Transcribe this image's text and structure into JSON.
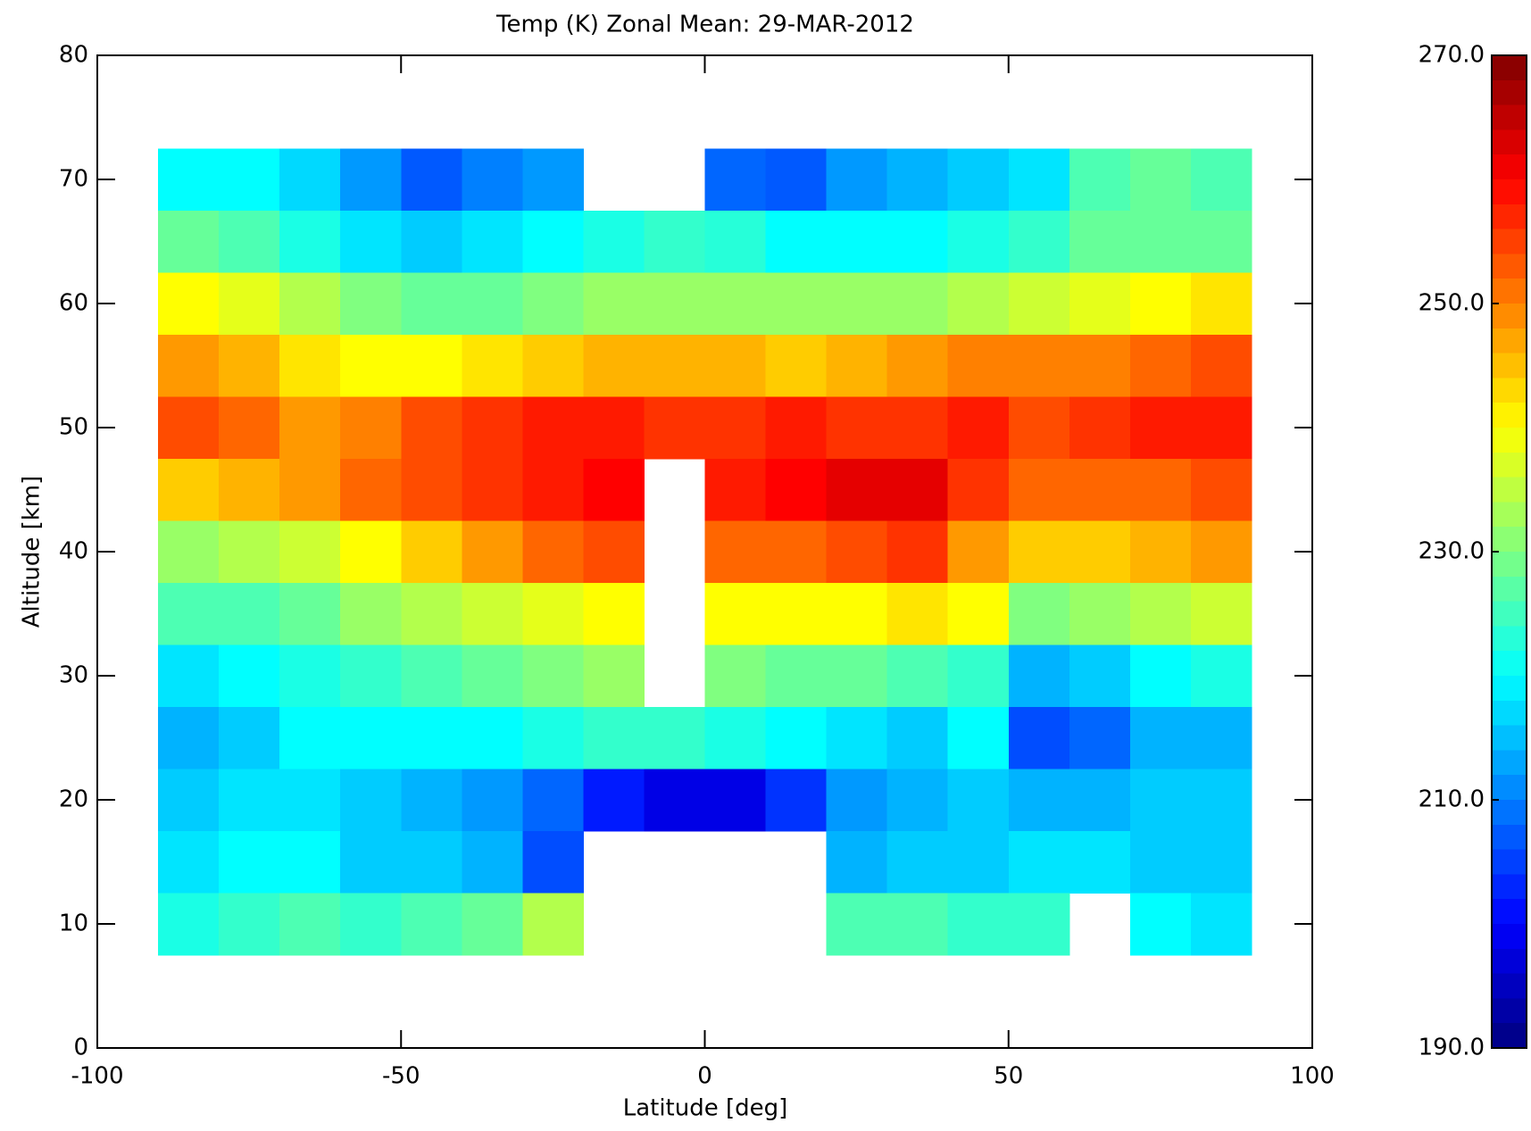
{
  "chart_data": {
    "type": "heatmap",
    "title": "Temp (K) Zonal Mean: 29-MAR-2012",
    "x_label": "Latitude [deg]",
    "y_label": "Altitude [km]",
    "colormap": "jet",
    "x": [
      -85,
      -75,
      -65,
      -55,
      -45,
      -35,
      -25,
      -15,
      -5,
      5,
      15,
      25,
      35,
      45,
      55,
      65,
      75,
      85
    ],
    "y": [
      70,
      65,
      60,
      55,
      50,
      45,
      40,
      35,
      30,
      25,
      20,
      15,
      10
    ],
    "z": [
      [
        220,
        220,
        217,
        212,
        207,
        210,
        212,
        null,
        null,
        208,
        207,
        212,
        214,
        216,
        218,
        226,
        228,
        226
      ],
      [
        228,
        226,
        222,
        218,
        216,
        218,
        220,
        222,
        224,
        223,
        220,
        220,
        220,
        222,
        224,
        228,
        228,
        228
      ],
      [
        240,
        238,
        234,
        230,
        228,
        228,
        230,
        232,
        232,
        232,
        232,
        232,
        232,
        234,
        236,
        238,
        240,
        242
      ],
      [
        248,
        246,
        242,
        240,
        240,
        242,
        244,
        246,
        246,
        246,
        244,
        246,
        248,
        250,
        250,
        250,
        252,
        254
      ],
      [
        254,
        252,
        248,
        250,
        254,
        256,
        258,
        258,
        256,
        256,
        258,
        256,
        256,
        258,
        254,
        256,
        258,
        258
      ],
      [
        244,
        246,
        248,
        252,
        254,
        256,
        258,
        260,
        null,
        258,
        260,
        262,
        262,
        256,
        252,
        252,
        252,
        254
      ],
      [
        232,
        234,
        236,
        240,
        244,
        248,
        252,
        254,
        null,
        252,
        252,
        254,
        256,
        248,
        244,
        244,
        246,
        248
      ],
      [
        226,
        226,
        228,
        232,
        234,
        236,
        238,
        240,
        null,
        240,
        240,
        240,
        242,
        240,
        230,
        232,
        234,
        236
      ],
      [
        218,
        220,
        222,
        224,
        226,
        228,
        230,
        232,
        null,
        230,
        228,
        228,
        226,
        224,
        214,
        216,
        220,
        222
      ],
      [
        214,
        216,
        220,
        220,
        220,
        220,
        222,
        224,
        224,
        222,
        220,
        218,
        216,
        220,
        206,
        208,
        214,
        214
      ],
      [
        216,
        218,
        218,
        216,
        214,
        212,
        208,
        202,
        198,
        198,
        204,
        212,
        214,
        216,
        214,
        214,
        216,
        216
      ],
      [
        218,
        220,
        220,
        216,
        216,
        214,
        206,
        null,
        null,
        null,
        null,
        214,
        216,
        216,
        218,
        218,
        216,
        216
      ],
      [
        222,
        224,
        226,
        224,
        226,
        228,
        234,
        null,
        null,
        null,
        null,
        226,
        226,
        224,
        224,
        null,
        220,
        218
      ]
    ],
    "xlim": [
      -100,
      100
    ],
    "ylim": [
      0,
      80
    ],
    "xticks": [
      -100,
      -50,
      0,
      50,
      100
    ],
    "yticks": [
      0,
      10,
      20,
      30,
      40,
      50,
      60,
      70,
      80
    ],
    "zlim": [
      190,
      270
    ],
    "zticks": [
      {
        "value": 190,
        "label": "190.0"
      },
      {
        "value": 210,
        "label": "210.0"
      },
      {
        "value": 230,
        "label": "230.0"
      },
      {
        "value": 250,
        "label": "250.0"
      },
      {
        "value": 270,
        "label": "270.0"
      }
    ]
  }
}
